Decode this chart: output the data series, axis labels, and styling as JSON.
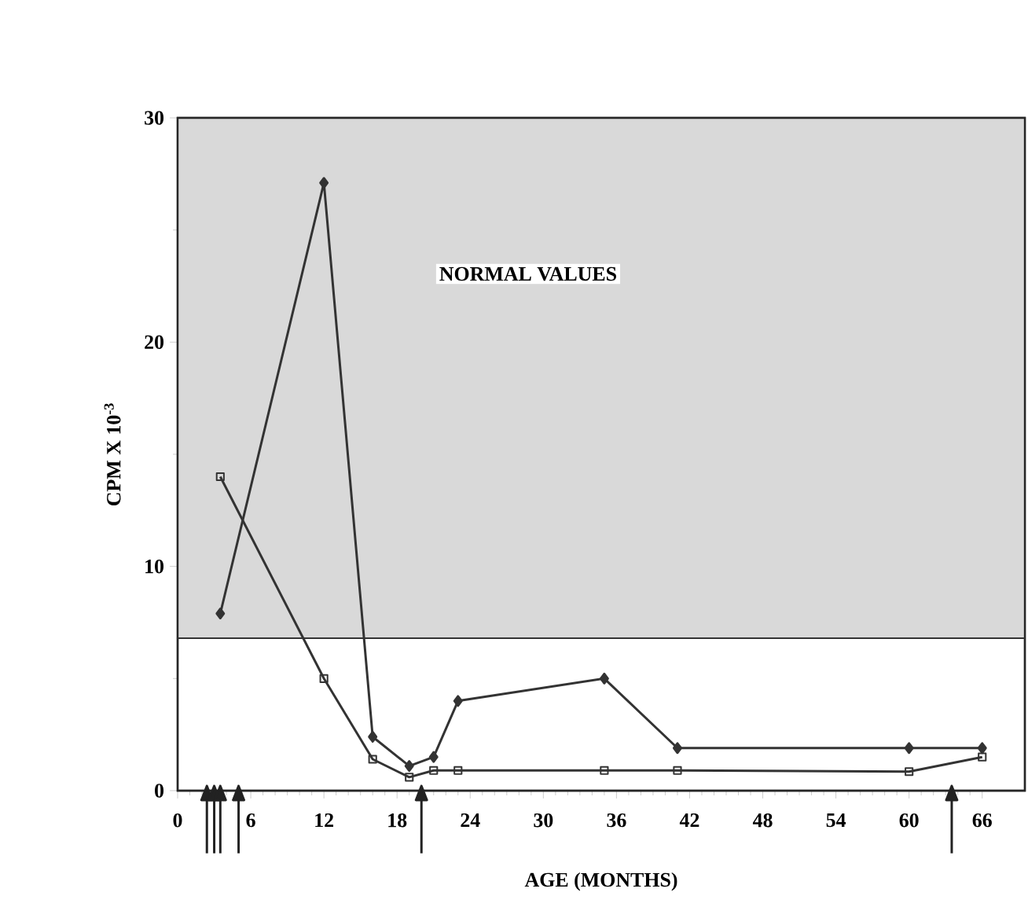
{
  "chart_data": {
    "type": "line",
    "xlabel": "AGE (MONTHS)",
    "ylabel": "CPM X 10$^{-3}$",
    "xlim": [
      0,
      69.5
    ],
    "xticks": [
      0,
      6,
      12,
      18,
      24,
      30,
      36,
      42,
      48,
      54,
      60,
      66
    ],
    "ylim": [
      0,
      30
    ],
    "yticks": [
      0,
      10,
      20,
      30
    ],
    "series": [
      {
        "color": "#333333",
        "marker": "diamond",
        "x": [
          3.5,
          12,
          16,
          19,
          21,
          23,
          35,
          41,
          60,
          66
        ],
        "values": [
          7.9,
          27.1,
          2.4,
          1.1,
          1.5,
          4.0,
          5.0,
          1.9,
          1.9,
          1.9
        ]
      },
      {
        "color": "#333333",
        "marker": "square",
        "x": [
          3.5,
          12,
          16,
          19,
          21,
          23,
          35,
          41,
          60,
          66
        ],
        "values": [
          14.0,
          5.0,
          1.4,
          0.6,
          0.9,
          0.9,
          0.9,
          0.9,
          0.85,
          1.5
        ]
      },
      {
        "type": "scatter",
        "color": "#222222",
        "marker": "triangle",
        "x": [
          2.4,
          3.0,
          3.5,
          5.0,
          20,
          63.5
        ],
        "values": [
          0,
          0,
          0,
          0,
          0,
          0
        ]
      }
    ],
    "bands": [
      {
        "axis": "y",
        "from": 6.8,
        "to": 30,
        "label": "NORMAL VALUES",
        "color": "#d9d9d9"
      }
    ],
    "ref_lines": [
      {
        "axis": "y",
        "value": 6.8,
        "color": "#333333",
        "line_style": "solid"
      }
    ],
    "grid": false,
    "legend": false,
    "line_style": "solid"
  }
}
